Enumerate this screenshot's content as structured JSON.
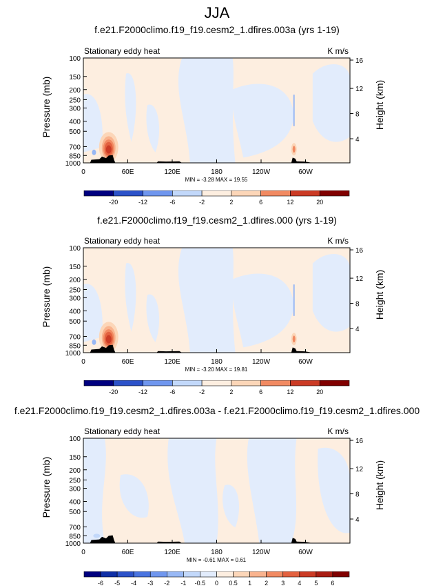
{
  "page": {
    "title": "JJA"
  },
  "colorbar": {
    "colors": [
      "#00007f",
      "#0f2fa6",
      "#2c52c9",
      "#4a74e0",
      "#6f96ee",
      "#98b8f5",
      "#c2d8fa",
      "#e2ecfc",
      "#fdeee0",
      "#fcd6b8",
      "#f9b38e",
      "#f18a62",
      "#e3613f",
      "#cb3b25",
      "#a91d13",
      "#800000"
    ]
  },
  "chart_data": [
    {
      "type": "contour",
      "title": "f.e21.F2000climo.f19_f19.cesm2_1.dfires.003a (yrs 1-19)",
      "subtitle_left": "Stationary eddy heat",
      "subtitle_right": "K m/s",
      "ylabel": "Pressure (mb)",
      "ylabel_right": "Height (km)",
      "y_ticks": [
        "100",
        "150",
        "200",
        "250",
        "300",
        "400",
        "500",
        "700",
        "850",
        "1000"
      ],
      "y_right_ticks": [
        "16",
        "12",
        "8",
        "4"
      ],
      "x_ticks": [
        "0",
        "60E",
        "120E",
        "180",
        "120W",
        "60W"
      ],
      "stats": "MIN = -3.28   MAX = 19.55",
      "min": -3.28,
      "max": 19.55,
      "colorbar_labels": [
        "-20",
        "-12",
        "-6",
        "-2",
        "2",
        "6",
        "12",
        "20"
      ]
    },
    {
      "type": "contour",
      "title": "f.e21.F2000climo.f19_f19.cesm2_1.dfires.000 (yrs 1-19)",
      "subtitle_left": "Stationary eddy heat",
      "subtitle_right": "K m/s",
      "ylabel": "Pressure (mb)",
      "ylabel_right": "Height (km)",
      "y_ticks": [
        "100",
        "150",
        "200",
        "250",
        "300",
        "400",
        "500",
        "700",
        "850",
        "1000"
      ],
      "y_right_ticks": [
        "16",
        "12",
        "8",
        "4"
      ],
      "x_ticks": [
        "0",
        "60E",
        "120E",
        "180",
        "120W",
        "60W"
      ],
      "stats": "MIN = -3.20   MAX = 19.81",
      "min": -3.2,
      "max": 19.81,
      "colorbar_labels": [
        "-20",
        "-12",
        "-6",
        "-2",
        "2",
        "6",
        "12",
        "20"
      ]
    },
    {
      "type": "contour",
      "title": "f.e21.F2000climo.f19_f19.cesm2_1.dfires.003a - f.e21.F2000climo.f19_f19.cesm2_1.dfires.000",
      "subtitle_left": "Stationary eddy heat",
      "subtitle_right": "K m/s",
      "ylabel": "Pressure (mb)",
      "ylabel_right": "Height (km)",
      "y_ticks": [
        "100",
        "150",
        "200",
        "250",
        "300",
        "400",
        "500",
        "700",
        "850",
        "1000"
      ],
      "y_right_ticks": [
        "16",
        "12",
        "8",
        "4"
      ],
      "x_ticks": [
        "0",
        "60E",
        "120E",
        "180",
        "120W",
        "60W"
      ],
      "stats": "MIN = -0.61   MAX = 0.61",
      "min": -0.61,
      "max": 0.61,
      "colorbar_labels": [
        "-6",
        "-5",
        "-4",
        "-3",
        "-2",
        "-1",
        "-0.5",
        "0",
        "0.5",
        "1",
        "2",
        "3",
        "4",
        "5",
        "6"
      ]
    }
  ]
}
